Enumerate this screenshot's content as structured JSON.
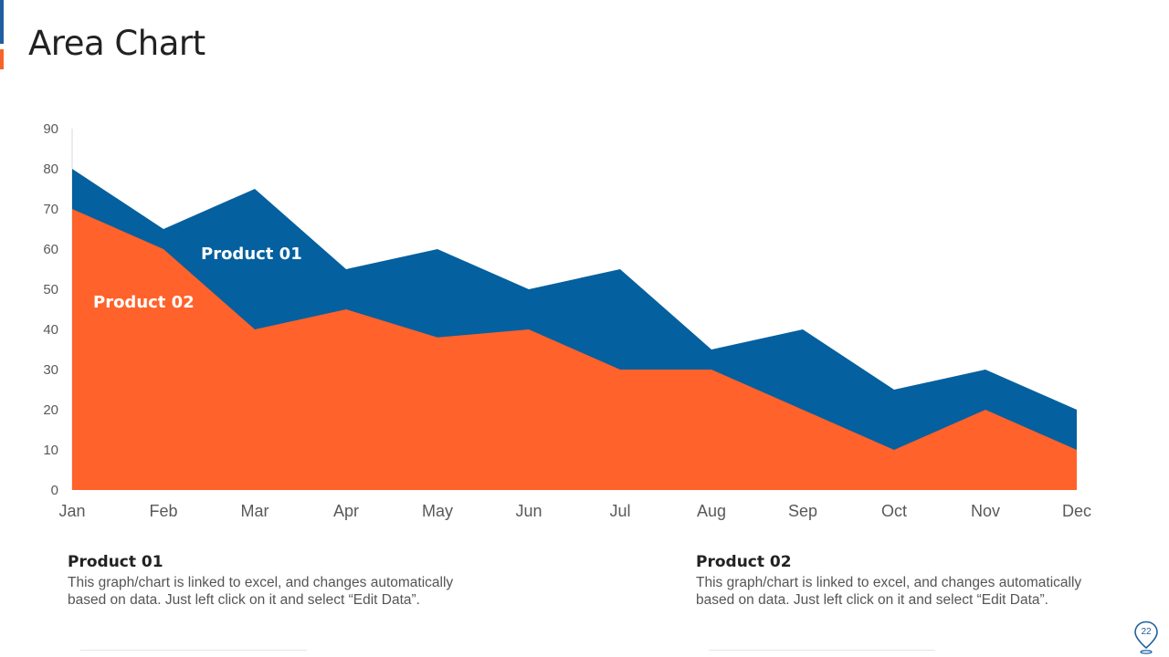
{
  "page": {
    "title": "Area Chart",
    "page_number": "22"
  },
  "colors": {
    "product_01": "#04609E",
    "product_02": "#FF622B",
    "accent_blue": "#1F5FA0",
    "accent_orange": "#F7642A"
  },
  "chart_data": {
    "type": "area",
    "stacked": false,
    "categories": [
      "Jan",
      "Feb",
      "Mar",
      "Apr",
      "May",
      "Jun",
      "Jul",
      "Aug",
      "Sep",
      "Oct",
      "Nov",
      "Dec"
    ],
    "series": [
      {
        "name": "Product 01",
        "values": [
          80,
          65,
          75,
          55,
          60,
          50,
          55,
          35,
          40,
          25,
          30,
          20
        ]
      },
      {
        "name": "Product 02",
        "values": [
          70,
          60,
          40,
          45,
          38,
          40,
          30,
          30,
          20,
          10,
          20,
          10
        ]
      }
    ],
    "ylim": [
      0,
      90
    ],
    "yticks": [
      0,
      10,
      20,
      30,
      40,
      50,
      60,
      70,
      80,
      90
    ],
    "grid": false,
    "legend": "inline labels on the areas"
  },
  "descriptions": [
    {
      "title": "Product 01",
      "text_line1": "This graph/chart  is linked to excel, and changes automatically",
      "text_line2": "based on data. Just left click on it and select “Edit Data”."
    },
    {
      "title": "Product 02",
      "text_line1": "This graph/chart  is linked to excel, and changes automatically",
      "text_line2": "based on data. Just left click on it and select “Edit Data”."
    }
  ]
}
